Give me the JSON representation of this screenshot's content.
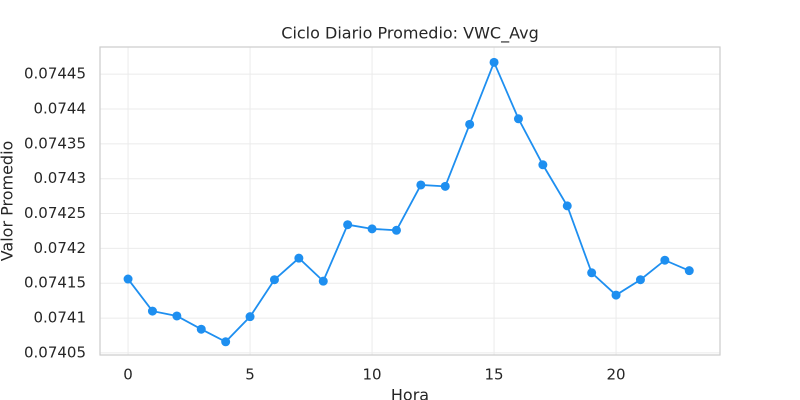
{
  "chart_data": {
    "type": "line",
    "title": "Ciclo Diario Promedio: VWC_Avg",
    "xlabel": "Hora",
    "ylabel": "Valor Promedio",
    "x": [
      0,
      1,
      2,
      3,
      4,
      5,
      6,
      7,
      8,
      9,
      10,
      11,
      12,
      13,
      14,
      15,
      16,
      17,
      18,
      19,
      20,
      21,
      22,
      23
    ],
    "series": [
      {
        "name": "VWC_Avg",
        "color": "#1e8ff0",
        "values": [
          0.074156,
          0.07411,
          0.074103,
          0.074084,
          0.074066,
          0.074102,
          0.074155,
          0.074186,
          0.074153,
          0.074234,
          0.074228,
          0.074226,
          0.074291,
          0.074289,
          0.074378,
          0.074467,
          0.074386,
          0.07432,
          0.074261,
          0.074165,
          0.074133,
          0.074155,
          0.074183,
          0.074168
        ]
      }
    ],
    "xlim": [
      -1.15,
      24.26
    ],
    "xticks": [
      0,
      5,
      10,
      15,
      20
    ],
    "ylim": [
      0.074047,
      0.074489
    ],
    "yticks": [
      0.07405,
      0.0741,
      0.07415,
      0.0742,
      0.07425,
      0.0743,
      0.07435,
      0.0744,
      0.07445
    ],
    "grid": true
  }
}
